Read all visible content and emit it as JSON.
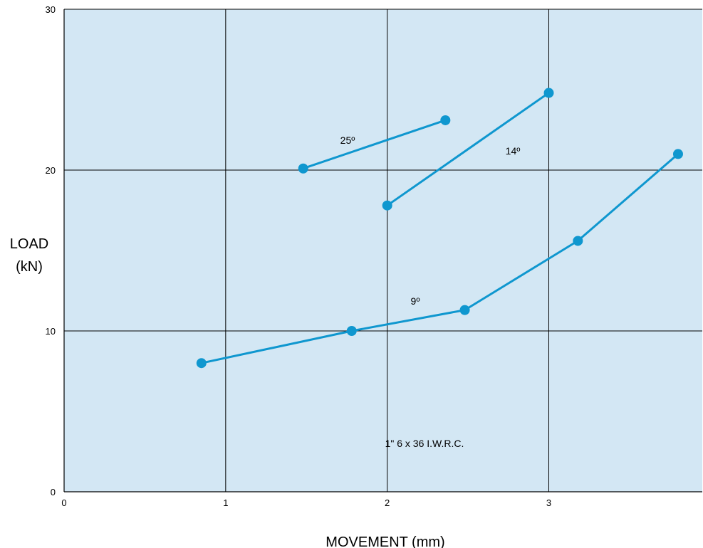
{
  "chart_data": {
    "type": "line",
    "title": "",
    "xlabel": "MOVEMENT (mm)",
    "ylabel_lines": [
      "LOAD",
      "(kN)"
    ],
    "xlim": [
      0,
      3.95
    ],
    "ylim": [
      0,
      30
    ],
    "x_ticks": [
      0,
      1,
      2,
      3
    ],
    "x_tick_labels": [
      "0",
      "1",
      "2",
      "3"
    ],
    "y_ticks": [
      0,
      10,
      20,
      30
    ],
    "y_tick_labels": [
      "0",
      "10",
      "20",
      "30"
    ],
    "grid": true,
    "series": [
      {
        "label": "25º",
        "x": [
          1.48,
          2.36
        ],
        "y": [
          20.1,
          23.1
        ]
      },
      {
        "label": "14º",
        "x": [
          2.0,
          3.0
        ],
        "y": [
          17.8,
          24.8
        ]
      },
      {
        "label": "9º",
        "x": [
          0.85,
          1.78,
          2.48,
          3.18,
          3.8
        ],
        "y": [
          8.0,
          10.0,
          11.3,
          15.6,
          21.0
        ]
      }
    ],
    "annotations": [
      "1\" 6 x 36 I.W.R.C."
    ]
  },
  "colors": {
    "plot_background": "#d3e7f4",
    "grid": "#000000",
    "series": "#0f97cf"
  }
}
